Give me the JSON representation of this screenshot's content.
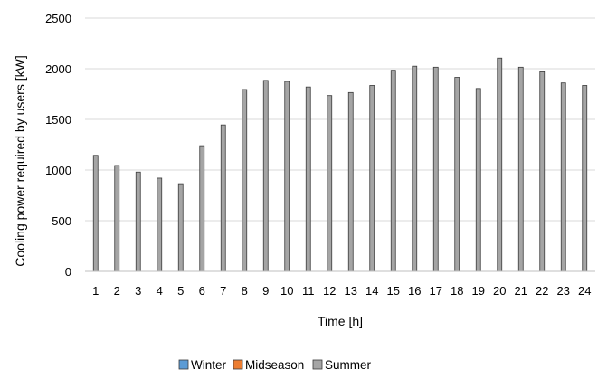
{
  "chart_data": {
    "type": "bar",
    "title": "",
    "xlabel": "Time [h]",
    "ylabel": "Cooling power required by users [kW]",
    "ylim": [
      0,
      2500
    ],
    "yticks": [
      "0",
      "500",
      "1000",
      "1500",
      "2000",
      "2500"
    ],
    "grid": "horizontal",
    "legend_position": "bottom",
    "categories": [
      "1",
      "2",
      "3",
      "4",
      "5",
      "6",
      "7",
      "8",
      "9",
      "10",
      "11",
      "12",
      "13",
      "14",
      "15",
      "16",
      "17",
      "18",
      "19",
      "20",
      "21",
      "22",
      "23",
      "24"
    ],
    "series": [
      {
        "name": "Winter",
        "color": "#5b9bd5",
        "values": [
          0,
          0,
          0,
          0,
          0,
          0,
          0,
          0,
          0,
          0,
          0,
          0,
          0,
          0,
          0,
          0,
          0,
          0,
          0,
          0,
          0,
          0,
          0,
          0
        ]
      },
      {
        "name": "Midseason",
        "color": "#ed7d31",
        "values": [
          0,
          0,
          0,
          0,
          0,
          0,
          0,
          0,
          0,
          0,
          0,
          0,
          0,
          0,
          0,
          0,
          0,
          0,
          0,
          0,
          0,
          0,
          0,
          0
        ]
      },
      {
        "name": "Summer",
        "color": "#a5a5a5",
        "values": [
          1145,
          1045,
          980,
          920,
          865,
          1240,
          1445,
          1795,
          1885,
          1875,
          1820,
          1735,
          1765,
          1835,
          1985,
          2025,
          2015,
          1915,
          1805,
          2105,
          2015,
          1970,
          1860,
          1835
        ]
      }
    ]
  }
}
